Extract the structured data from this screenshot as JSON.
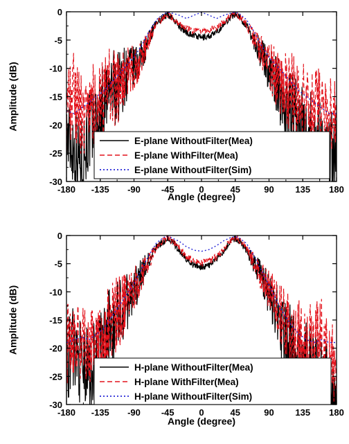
{
  "chart_data": [
    {
      "type": "line",
      "xlabel": "Angle (degree)",
      "ylabel": "Amplitude (dB)",
      "xlim": [
        -180,
        180
      ],
      "ylim": [
        -30,
        0
      ],
      "xticks": [
        -180,
        -135,
        -90,
        -45,
        0,
        45,
        90,
        135,
        180
      ],
      "yticks": [
        0,
        -5,
        -10,
        -15,
        -20,
        -25,
        -30
      ],
      "grid": false,
      "legend_position": "bottom-right",
      "series": [
        {
          "name": "E-plane WithoutFilter(Mea)",
          "color": "#000000",
          "style": "solid",
          "x": [
            -180,
            -170,
            -160,
            -150,
            -140,
            -130,
            -120,
            -110,
            -100,
            -90,
            -80,
            -70,
            -60,
            -50,
            -45,
            -40,
            -30,
            -20,
            -10,
            0,
            10,
            20,
            30,
            40,
            45,
            50,
            60,
            70,
            80,
            90,
            100,
            110,
            120,
            130,
            140,
            150,
            160,
            170,
            180
          ],
          "y": [
            -22,
            -24,
            -26,
            -21,
            -20,
            -16,
            -14,
            -13,
            -11,
            -10,
            -8,
            -5,
            -2,
            -0.8,
            -0.6,
            -0.9,
            -2.5,
            -3.6,
            -4.2,
            -4.6,
            -4.3,
            -3.7,
            -2.2,
            -0.7,
            -0.5,
            -0.8,
            -2.5,
            -5,
            -7.5,
            -10,
            -13,
            -16,
            -18,
            -20,
            -21,
            -22,
            -23,
            -24,
            -25
          ]
        },
        {
          "name": "E-plane WithFilter(Mea)",
          "color": "#e3121b",
          "style": "dashed",
          "x": [
            -180,
            -170,
            -160,
            -150,
            -140,
            -130,
            -120,
            -110,
            -100,
            -90,
            -80,
            -70,
            -60,
            -50,
            -45,
            -40,
            -30,
            -20,
            -10,
            0,
            10,
            20,
            30,
            40,
            45,
            50,
            60,
            70,
            80,
            90,
            100,
            110,
            120,
            130,
            140,
            150,
            160,
            170,
            180
          ],
          "y": [
            -17,
            -14,
            -19,
            -15,
            -17,
            -16,
            -13,
            -14,
            -11,
            -10,
            -8,
            -5,
            -2.2,
            -1.0,
            -0.5,
            -1.0,
            -2.2,
            -3.0,
            -3.4,
            -3.6,
            -3.3,
            -2.8,
            -1.8,
            -0.6,
            -0.4,
            -0.8,
            -2.2,
            -4.8,
            -7.2,
            -9.5,
            -11.5,
            -13,
            -14,
            -15.5,
            -17,
            -18,
            -16,
            -18,
            -17
          ]
        },
        {
          "name": "E-plane WithoutFilter(Sim)",
          "color": "#2424d6",
          "style": "dotted",
          "x": [
            -180,
            -170,
            -160,
            -150,
            -140,
            -130,
            -120,
            -110,
            -100,
            -90,
            -80,
            -70,
            -60,
            -50,
            -45,
            -40,
            -30,
            -20,
            -10,
            0,
            10,
            20,
            30,
            40,
            45,
            50,
            60,
            70,
            80,
            90,
            100,
            110,
            120,
            130,
            140,
            150,
            160,
            170,
            180
          ],
          "y": [
            -17.5,
            -18,
            -17,
            -16,
            -15,
            -14,
            -12.5,
            -11,
            -9.5,
            -8,
            -6,
            -3.5,
            -1.4,
            -0.3,
            -0.1,
            -0.2,
            -0.6,
            -1.2,
            -0.6,
            -0.1,
            -0.6,
            -1.2,
            -0.6,
            -0.2,
            -0.1,
            -0.3,
            -1.4,
            -3.5,
            -6,
            -8,
            -9.5,
            -11,
            -12.5,
            -14,
            -15,
            -16,
            -17,
            -18,
            -18
          ]
        }
      ]
    },
    {
      "type": "line",
      "xlabel": "Angle (degree)",
      "ylabel": "Amplitude (dB)",
      "xlim": [
        -180,
        180
      ],
      "ylim": [
        -30,
        0
      ],
      "xticks": [
        -180,
        -135,
        -90,
        -45,
        0,
        45,
        90,
        135,
        180
      ],
      "yticks": [
        0,
        -5,
        -10,
        -15,
        -20,
        -25,
        -30
      ],
      "grid": false,
      "legend_position": "bottom-right",
      "series": [
        {
          "name": "H-plane WithoutFilter(Mea)",
          "color": "#000000",
          "style": "solid",
          "x": [
            -180,
            -170,
            -160,
            -150,
            -140,
            -130,
            -120,
            -110,
            -100,
            -90,
            -80,
            -70,
            -60,
            -50,
            -45,
            -40,
            -30,
            -20,
            -10,
            0,
            10,
            20,
            30,
            40,
            45,
            50,
            60,
            70,
            80,
            90,
            100,
            110,
            120,
            130,
            140,
            150,
            160,
            170,
            180
          ],
          "y": [
            -22,
            -20,
            -23,
            -24,
            -22,
            -19,
            -16,
            -14,
            -12,
            -10,
            -7,
            -4.5,
            -2,
            -1.0,
            -0.7,
            -1.0,
            -2.5,
            -4.2,
            -5.3,
            -5.6,
            -5.3,
            -4.3,
            -2.6,
            -0.9,
            -0.6,
            -1.0,
            -2.5,
            -5,
            -7.5,
            -10,
            -13.5,
            -17,
            -20,
            -22,
            -23,
            -24,
            -25,
            -27,
            -29
          ]
        },
        {
          "name": "H-plane WithFilter(Mea)",
          "color": "#e3121b",
          "style": "dashed",
          "x": [
            -180,
            -170,
            -160,
            -150,
            -140,
            -130,
            -120,
            -110,
            -100,
            -90,
            -80,
            -70,
            -60,
            -50,
            -45,
            -40,
            -30,
            -20,
            -10,
            0,
            10,
            20,
            30,
            40,
            45,
            50,
            60,
            70,
            80,
            90,
            100,
            110,
            120,
            130,
            140,
            150,
            160,
            170,
            180
          ],
          "y": [
            -19,
            -17,
            -20,
            -19,
            -22,
            -18,
            -15,
            -13.5,
            -11.5,
            -9.5,
            -7,
            -4.5,
            -2,
            -0.8,
            -0.5,
            -0.9,
            -2.2,
            -3.8,
            -4.6,
            -4.9,
            -4.6,
            -3.8,
            -2.4,
            -0.8,
            -0.4,
            -0.8,
            -2.2,
            -4.8,
            -7.2,
            -9.5,
            -12.5,
            -15,
            -17,
            -18,
            -19,
            -20,
            -18,
            -22,
            -24
          ]
        },
        {
          "name": "H-plane WithoutFilter(Sim)",
          "color": "#2424d6",
          "style": "dotted",
          "x": [
            -180,
            -170,
            -160,
            -150,
            -140,
            -130,
            -120,
            -110,
            -100,
            -90,
            -80,
            -70,
            -60,
            -50,
            -45,
            -40,
            -30,
            -20,
            -10,
            0,
            10,
            20,
            30,
            40,
            45,
            50,
            60,
            70,
            80,
            90,
            100,
            110,
            120,
            130,
            140,
            150,
            160,
            170,
            180
          ],
          "y": [
            -19,
            -18.5,
            -18,
            -18.5,
            -17.5,
            -16.5,
            -14.5,
            -12.5,
            -10.5,
            -8.5,
            -6,
            -3.5,
            -1.3,
            -0.3,
            -0.2,
            -0.4,
            -1.0,
            -2.0,
            -2.6,
            -2.8,
            -2.5,
            -1.8,
            -0.9,
            -0.3,
            -0.2,
            -0.4,
            -1.4,
            -3.6,
            -6.2,
            -8.8,
            -11.5,
            -14,
            -16,
            -17.5,
            -18.5,
            -19,
            -18.5,
            -19,
            -19
          ]
        }
      ]
    }
  ]
}
